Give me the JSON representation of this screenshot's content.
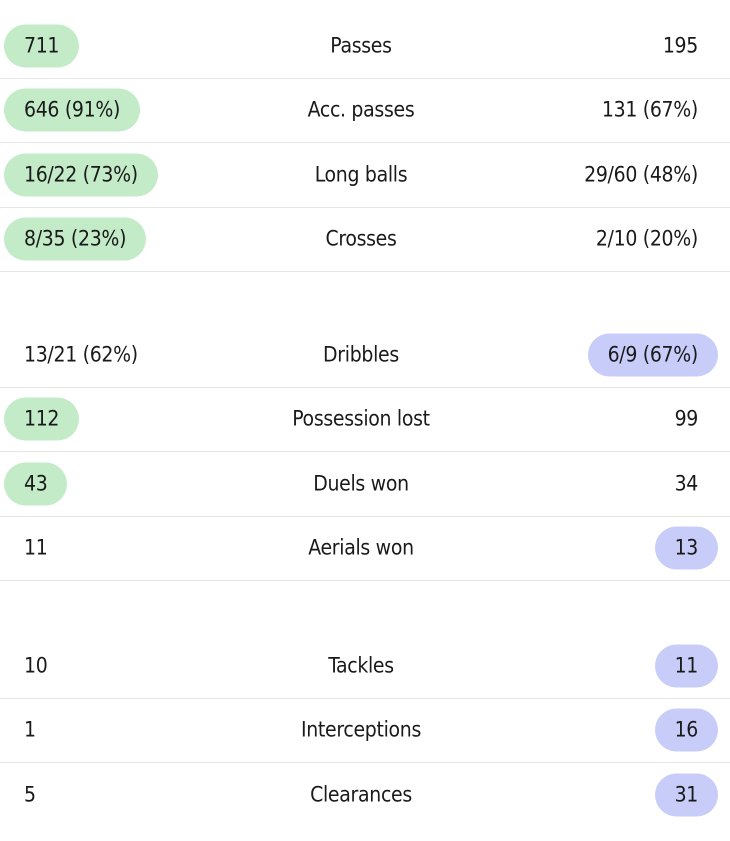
{
  "colors": {
    "home_highlight": "#c3ebc8",
    "away_highlight": "#c8ccf8",
    "divider": "#e6e6e6",
    "text": "#1a1a1a"
  },
  "groups": [
    {
      "rows": [
        {
          "home": "711",
          "label": "Passes",
          "away": "195",
          "leader": "home"
        },
        {
          "home": "646 (91%)",
          "label": "Acc. passes",
          "away": "131 (67%)",
          "leader": "home"
        },
        {
          "home": "16/22 (73%)",
          "label": "Long balls",
          "away": "29/60 (48%)",
          "leader": "home"
        },
        {
          "home": "8/35 (23%)",
          "label": "Crosses",
          "away": "2/10 (20%)",
          "leader": "home"
        }
      ]
    },
    {
      "rows": [
        {
          "home": "13/21 (62%)",
          "label": "Dribbles",
          "away": "6/9 (67%)",
          "leader": "away"
        },
        {
          "home": "112",
          "label": "Possession lost",
          "away": "99",
          "leader": "home"
        },
        {
          "home": "43",
          "label": "Duels won",
          "away": "34",
          "leader": "home"
        },
        {
          "home": "11",
          "label": "Aerials won",
          "away": "13",
          "leader": "away"
        }
      ]
    },
    {
      "rows": [
        {
          "home": "10",
          "label": "Tackles",
          "away": "11",
          "leader": "away"
        },
        {
          "home": "1",
          "label": "Interceptions",
          "away": "16",
          "leader": "away"
        },
        {
          "home": "5",
          "label": "Clearances",
          "away": "31",
          "leader": "away"
        }
      ]
    }
  ]
}
